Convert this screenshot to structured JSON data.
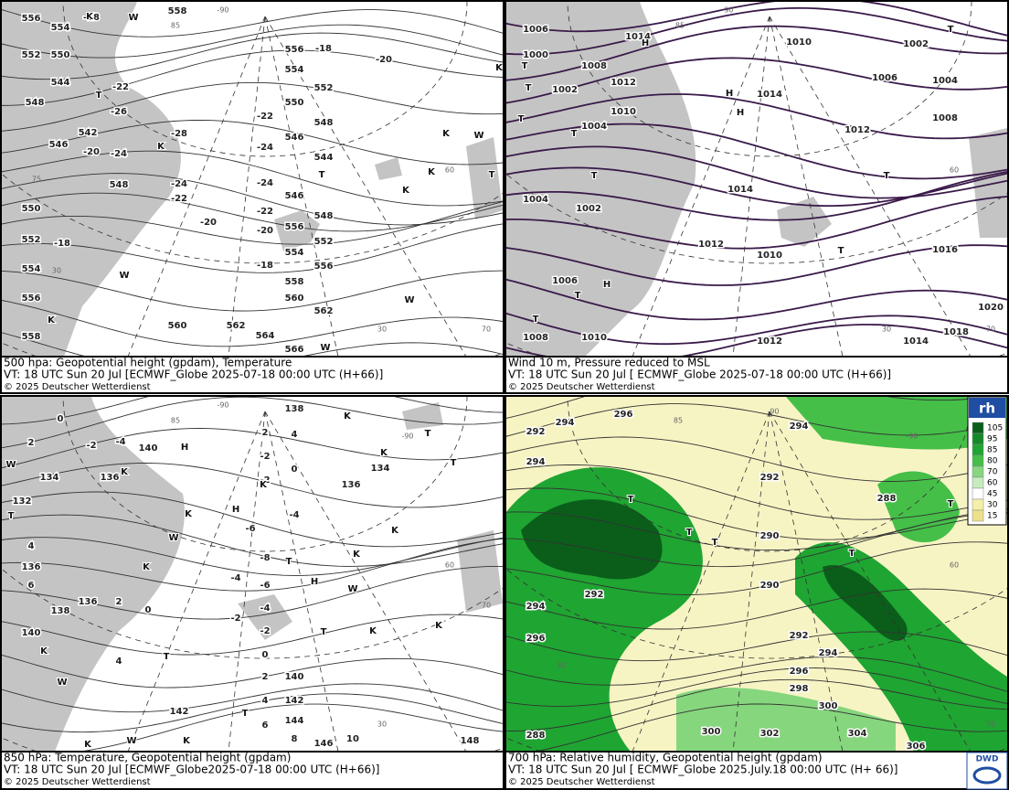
{
  "panels": [
    {
      "caption": [
        "500 hpa: Geopotential height (gpdam), Temperature",
        "VT: 18 UTC Sun  20 Jul [ECMWF_Globe 2025-07-18 00:00 UTC  (H+66)]",
        "© 2025 Deutscher Wetterdienst"
      ],
      "height_labels": [
        556,
        554,
        552,
        550,
        548,
        544,
        542,
        546,
        548,
        550,
        552,
        554,
        556,
        558,
        558,
        556,
        554,
        552,
        550,
        548,
        546,
        544,
        546,
        548,
        556,
        552,
        554,
        556,
        558,
        560,
        562,
        560,
        562,
        564,
        566
      ],
      "temperature_labels": [
        -18,
        -18,
        -20,
        -22,
        -26,
        -28,
        -22,
        -24,
        -20,
        -24,
        -24,
        -22,
        -24,
        -22,
        -20,
        -20,
        -18,
        -18
      ],
      "symbols": [
        "K",
        "W",
        "T",
        "K",
        "K",
        "W",
        "K",
        "T",
        "K",
        "T",
        "K",
        "W",
        "K",
        "W",
        "W"
      ],
      "grid_labels": [
        -90,
        85,
        60,
        75,
        30,
        30,
        70
      ]
    },
    {
      "caption": [
        "Wind 10 m, Pressure reduced to MSL",
        "VT: 18 UTC Sun  20 Jul [ ECMWF_Globe 2025-07-18 00:00 UTC (H+66)]",
        "© 2025 Deutscher Wetterdienst"
      ],
      "isobar_labels": [
        1006,
        1014,
        1010,
        1002,
        1000,
        1008,
        1006,
        1004,
        1012,
        1002,
        1014,
        1010,
        1008,
        1004,
        1012,
        1014,
        1004,
        1002,
        1012,
        1016,
        1010,
        1006,
        1020,
        1018,
        1008,
        1010,
        1012,
        1014
      ],
      "symbols": [
        "H",
        "T",
        "T",
        "T",
        "T",
        "T",
        "H",
        "H",
        "T",
        "T",
        "T",
        "H",
        "T",
        "T"
      ],
      "grid_labels": [
        -90,
        85,
        60,
        30,
        70
      ]
    },
    {
      "caption": [
        "850 hPa:  Temperature, Geopotential height (gpdam)",
        "VT: 18 UTC Sun  20 Jul [ECMWF_Globe2025-07-18 00:00 UTC (H+66)]",
        "© 2025 Deutscher Wetterdienst"
      ],
      "height_labels": [
        138,
        140,
        134,
        136,
        132,
        134,
        136,
        136,
        136,
        138,
        140,
        140,
        142,
        142,
        144,
        146,
        148
      ],
      "temperature_labels": [
        0,
        2,
        4,
        -2,
        -4,
        2,
        -2,
        0,
        -2,
        -4,
        -6,
        -8,
        -6,
        -4,
        -4,
        -2,
        -2,
        4,
        6,
        2,
        0,
        4,
        0,
        2,
        4,
        6,
        8,
        10
      ],
      "symbols": [
        "K",
        "T",
        "K",
        "T",
        "W",
        "K",
        "T",
        "H",
        "K",
        "H",
        "K",
        "W",
        "K",
        "K",
        "T",
        "H",
        "K",
        "W",
        "K",
        "T",
        "K",
        "K",
        "T",
        "W",
        "T",
        "W",
        "K",
        "K"
      ],
      "grid_labels": [
        -90,
        85,
        -90,
        60,
        70,
        30
      ]
    },
    {
      "caption": [
        "700 hPa:  Relative humidity, Geopotential height (gpdam)",
        "VT: 18 UTC Sun  20 Jul [ ECMWF_Globe  2025.July.18 00:00 UTC (H+ 66)]",
        "© 2025 Deutscher Wetterdienst"
      ],
      "height_labels": [
        292,
        294,
        296,
        294,
        294,
        292,
        288,
        290,
        290,
        292,
        294,
        296,
        292,
        294,
        296,
        298,
        300,
        300,
        302,
        304,
        306,
        288
      ],
      "symbols": [
        "T",
        "T",
        "T",
        "T",
        "T"
      ],
      "grid_labels": [
        -90,
        85,
        -90,
        60,
        30,
        70
      ],
      "legend": {
        "title": "rh",
        "levels": [
          105,
          95,
          85,
          80,
          70,
          60,
          45,
          30,
          15
        ],
        "colors": [
          "#0a5e1a",
          "#128a28",
          "#1fa532",
          "#45bf48",
          "#86d67e",
          "#c6ecbe",
          "#ffffff",
          "#f4f0a8",
          "#ece08a"
        ]
      },
      "logo": "DWD"
    }
  ]
}
